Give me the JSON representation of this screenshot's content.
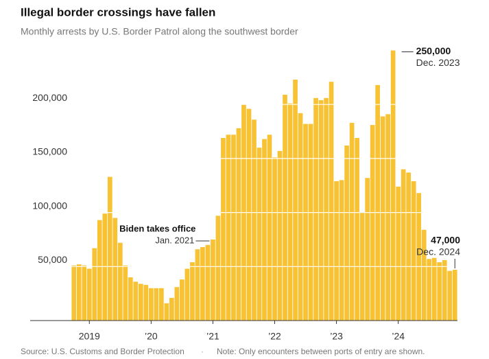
{
  "chart_data": {
    "type": "bar",
    "title": "Illegal border crossings have fallen",
    "subtitle": "Monthly arrests by U.S. Border Patrol along the southwest border",
    "source": "Source: U.S. Customs and Border Protection",
    "note": "Note: Only encounters between ports of entry are shown.",
    "color": "#f7c234",
    "grid": true,
    "ylim": [
      0,
      250000
    ],
    "yticks": [
      {
        "value": 50000,
        "label": "50,000"
      },
      {
        "value": 100000,
        "label": "100,000"
      },
      {
        "value": 150000,
        "label": "150,000"
      },
      {
        "value": 200000,
        "label": "200,000"
      }
    ],
    "categories": [
      null,
      null,
      null,
      "2019",
      null,
      null,
      null,
      null,
      null,
      null,
      null,
      null,
      null,
      null,
      null,
      "’20",
      null,
      null,
      null,
      null,
      null,
      null,
      null,
      null,
      null,
      null,
      null,
      "’21",
      null,
      null,
      null,
      null,
      null,
      null,
      null,
      null,
      null,
      null,
      null,
      "’22",
      null,
      null,
      null,
      null,
      null,
      null,
      null,
      null,
      null,
      null,
      null,
      "’23",
      null,
      null,
      null,
      null,
      null,
      null,
      null,
      null,
      null,
      null,
      null,
      "’24",
      null,
      null,
      null,
      null,
      null,
      null,
      null,
      null,
      null,
      null,
      null
    ],
    "values": [
      51000,
      52000,
      51000,
      48000,
      67000,
      93000,
      99000,
      133000,
      95000,
      72000,
      51000,
      40000,
      36000,
      34000,
      33000,
      30000,
      30000,
      30000,
      16000,
      21000,
      31000,
      38000,
      48000,
      54000,
      66000,
      68000,
      70000,
      75000,
      97000,
      169000,
      172000,
      172000,
      178000,
      200000,
      196000,
      186000,
      160000,
      168000,
      172000,
      151000,
      157000,
      209000,
      201000,
      223000,
      192000,
      182000,
      182000,
      206000,
      204000,
      206000,
      221000,
      129000,
      130000,
      162000,
      183000,
      169000,
      100000,
      132000,
      181000,
      218000,
      189000,
      191000,
      250000,
      124000,
      140000,
      137000,
      129000,
      118000,
      84000,
      57000,
      58000,
      54000,
      56000,
      46000,
      47000
    ],
    "annotations": [
      {
        "label": "250,000",
        "date": "Dec. 2023"
      },
      {
        "label": "Biden takes office",
        "date": "Jan. 2021"
      },
      {
        "label": "47,000",
        "date": "Dec. 2024"
      }
    ]
  }
}
